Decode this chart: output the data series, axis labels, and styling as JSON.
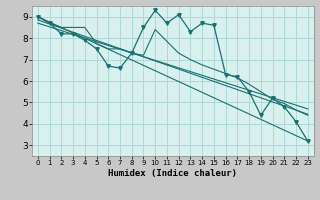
{
  "xlabel": "Humidex (Indice chaleur)",
  "xlim": [
    -0.5,
    23.5
  ],
  "ylim": [
    2.5,
    9.5
  ],
  "xticks": [
    0,
    1,
    2,
    3,
    4,
    5,
    6,
    7,
    8,
    9,
    10,
    11,
    12,
    13,
    14,
    15,
    16,
    17,
    18,
    19,
    20,
    21,
    22,
    23
  ],
  "yticks": [
    3,
    4,
    5,
    6,
    7,
    8,
    9
  ],
  "bg_color": "#d8f0ee",
  "grid_color": "#b0d8d8",
  "line_color": "#1a7070",
  "series1_x": [
    0,
    1,
    2,
    3,
    4,
    5,
    6,
    7,
    8,
    9,
    10,
    11,
    12,
    13,
    14,
    15,
    16,
    17,
    18,
    19,
    20,
    21,
    22,
    23
  ],
  "series1_y": [
    9.0,
    8.7,
    8.2,
    8.2,
    7.9,
    7.5,
    6.7,
    6.6,
    7.3,
    8.5,
    9.3,
    8.7,
    9.1,
    8.3,
    8.7,
    8.6,
    6.3,
    6.2,
    5.5,
    4.4,
    5.2,
    4.8,
    4.1,
    3.2
  ],
  "series2_x": [
    0,
    1,
    2,
    3,
    4,
    5,
    6,
    7,
    8,
    9,
    10,
    11,
    12,
    13,
    14,
    15,
    16,
    17,
    18,
    19,
    20,
    21,
    22,
    23
  ],
  "series2_y": [
    9.0,
    8.7,
    8.5,
    8.5,
    8.5,
    7.75,
    7.5,
    7.5,
    7.3,
    7.2,
    8.4,
    7.85,
    7.3,
    7.0,
    6.75,
    6.55,
    6.35,
    6.15,
    5.85,
    5.5,
    5.15,
    4.95,
    4.65,
    4.4
  ],
  "line1_x": [
    0,
    23
  ],
  "line1_y": [
    9.0,
    3.2
  ],
  "line2_x": [
    0,
    23
  ],
  "line2_y": [
    8.85,
    4.45
  ],
  "line3_x": [
    0,
    23
  ],
  "line3_y": [
    8.7,
    4.7
  ]
}
